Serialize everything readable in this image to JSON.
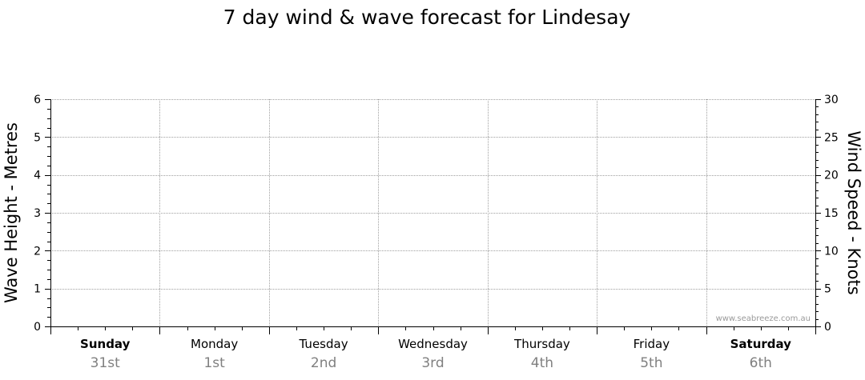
{
  "chart_data": {
    "type": "line",
    "title": "7 day wind & wave forecast for Lindesay",
    "y_left": {
      "label": "Wave Height - Metres",
      "range": [
        0,
        6
      ],
      "ticks": [
        "0",
        "1",
        "2",
        "3",
        "4",
        "5",
        "6"
      ]
    },
    "y_right": {
      "label": "Wind Speed - Knots",
      "range": [
        0,
        30
      ],
      "ticks": [
        "0",
        "5",
        "10",
        "15",
        "20",
        "25",
        "30"
      ]
    },
    "days": [
      {
        "name": "Sunday",
        "date": "31st",
        "bold": true
      },
      {
        "name": "Monday",
        "date": "1st",
        "bold": false
      },
      {
        "name": "Tuesday",
        "date": "2nd",
        "bold": false
      },
      {
        "name": "Wednesday",
        "date": "3rd",
        "bold": false
      },
      {
        "name": "Thursday",
        "date": "4th",
        "bold": false
      },
      {
        "name": "Friday",
        "date": "5th",
        "bold": false
      },
      {
        "name": "Saturday",
        "date": "6th",
        "bold": true
      }
    ],
    "grid": true,
    "series": [],
    "watermark": "www.seabreeze.com.au"
  }
}
